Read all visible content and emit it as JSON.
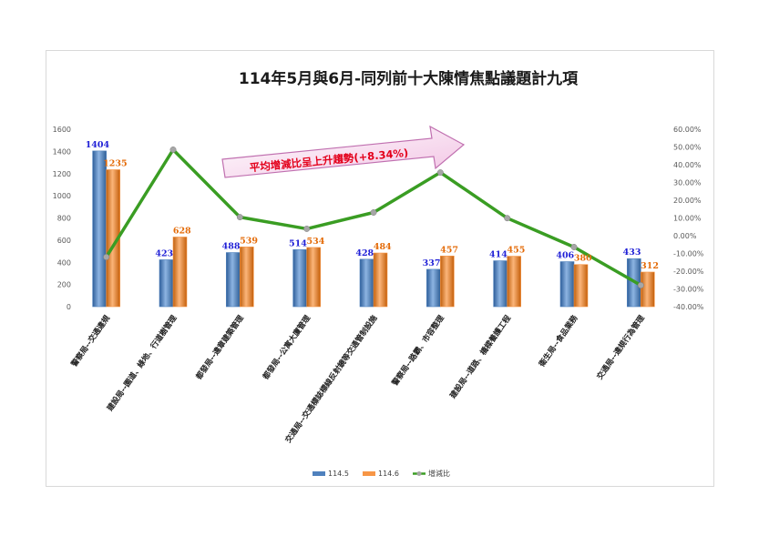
{
  "chart_data": {
    "type": "bar",
    "title": "114年5月與6月-同列前十大陳情焦點議題計九項",
    "categories": [
      "警察局--交通違規",
      "建設局--園道、綠地、行道樹管理",
      "都發局--違章建築管理",
      "都發局--公寓大廈管理",
      "交通局--交通標誌標線反射鏡等交通管制設施",
      "警察局--路霸、市容整理",
      "建設局--道路、橋樑養護工程",
      "衛生局--食品業務",
      "交通局--違規行為管理"
    ],
    "series": [
      {
        "name": "114.5",
        "type": "bar",
        "axis": "left",
        "color": "#4f81bd",
        "label_color": "#1f1fd6",
        "values": [
          1404,
          423,
          488,
          514,
          428,
          337,
          414,
          406,
          433
        ]
      },
      {
        "name": "114.6",
        "type": "bar",
        "axis": "left",
        "color": "#f79646",
        "label_color": "#e46c0a",
        "values": [
          1235,
          628,
          539,
          534,
          484,
          457,
          455,
          380,
          312
        ]
      },
      {
        "name": "增減比",
        "type": "line",
        "axis": "right",
        "color": "#3a9d23",
        "values": [
          -12.04,
          48.46,
          10.45,
          3.89,
          13.08,
          35.61,
          9.9,
          -6.4,
          -27.94
        ]
      }
    ],
    "ylim": [
      0,
      1600
    ],
    "y_ticks": [
      "0",
      "200",
      "400",
      "600",
      "800",
      "1000",
      "1200",
      "1400",
      "1600"
    ],
    "y2lim": [
      -40,
      60
    ],
    "y2_ticks": [
      "-40.00%",
      "-30.00%",
      "-20.00%",
      "-10.00%",
      "0.00%",
      "10.00%",
      "20.00%",
      "30.00%",
      "40.00%",
      "50.00%",
      "60.00%"
    ],
    "grid": false,
    "legend_position": "bottom",
    "annotation": "平均增減比呈上升趨勢(+8.34%)"
  }
}
